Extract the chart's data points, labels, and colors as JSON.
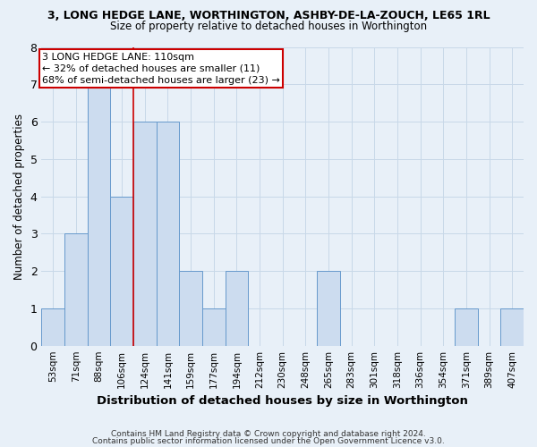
{
  "title": "3, LONG HEDGE LANE, WORTHINGTON, ASHBY-DE-LA-ZOUCH, LE65 1RL",
  "subtitle": "Size of property relative to detached houses in Worthington",
  "xlabel": "Distribution of detached houses by size in Worthington",
  "ylabel": "Number of detached properties",
  "footer_line1": "Contains HM Land Registry data © Crown copyright and database right 2024.",
  "footer_line2": "Contains public sector information licensed under the Open Government Licence v3.0.",
  "bin_labels": [
    "53sqm",
    "71sqm",
    "88sqm",
    "106sqm",
    "124sqm",
    "141sqm",
    "159sqm",
    "177sqm",
    "194sqm",
    "212sqm",
    "230sqm",
    "248sqm",
    "265sqm",
    "283sqm",
    "301sqm",
    "318sqm",
    "336sqm",
    "354sqm",
    "371sqm",
    "389sqm",
    "407sqm"
  ],
  "values": [
    1,
    3,
    7,
    4,
    6,
    6,
    2,
    1,
    2,
    0,
    0,
    0,
    2,
    0,
    0,
    0,
    0,
    0,
    1,
    0,
    1
  ],
  "bar_color": "#ccdcef",
  "bar_edge_color": "#6699cc",
  "grid_color": "#c8d8e8",
  "background_color": "#e8f0f8",
  "red_line_x": 3.5,
  "annotation_line1": "3 LONG HEDGE LANE: 110sqm",
  "annotation_line2": "← 32% of detached houses are smaller (11)",
  "annotation_line3": "68% of semi-detached houses are larger (23) →",
  "annotation_box_color": "#ffffff",
  "annotation_box_edge": "#cc0000",
  "ylim": [
    0,
    8
  ],
  "yticks": [
    0,
    1,
    2,
    3,
    4,
    5,
    6,
    7,
    8
  ]
}
